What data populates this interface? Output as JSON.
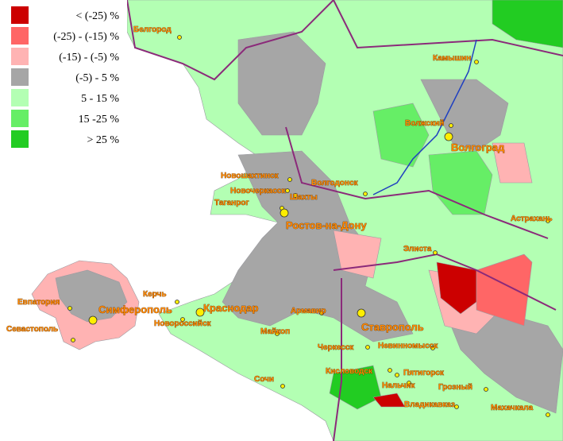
{
  "legend": [
    {
      "label": "< (-25) %",
      "color": "#cc0000"
    },
    {
      "label": "(-25) - (-15) %",
      "color": "#ff6666"
    },
    {
      "label": "(-15) - (-5) %",
      "color": "#ffb3b3"
    },
    {
      "label": "(-5) - 5 %",
      "color": "#a6a6a6"
    },
    {
      "label": "5 - 15 %",
      "color": "#b3ffb3"
    },
    {
      "label": "15 -25 %",
      "color": "#66ee66"
    },
    {
      "label": "> 25 %",
      "color": "#22cc22"
    }
  ],
  "cities": [
    "Белгород",
    "Камышин",
    "Волжский",
    "Волгоград",
    "Новошахтинск",
    "Волгодонск",
    "Новочеркасск",
    "Шахты",
    "Таганрог",
    "Ростов-на-Дону",
    "Астрахань",
    "Элиста",
    "Керчь",
    "Евпатория",
    "Симферополь",
    "Краснодар",
    "Армавир",
    "Новороссийск",
    "Севастополь",
    "Ставрополь",
    "Майкоп",
    "Черкесск",
    "Невинномысск",
    "Кисловодск",
    "Пятигорск",
    "Сочи",
    "Нальчик",
    "Грозный",
    "Владикавказ",
    "Махачкала"
  ]
}
